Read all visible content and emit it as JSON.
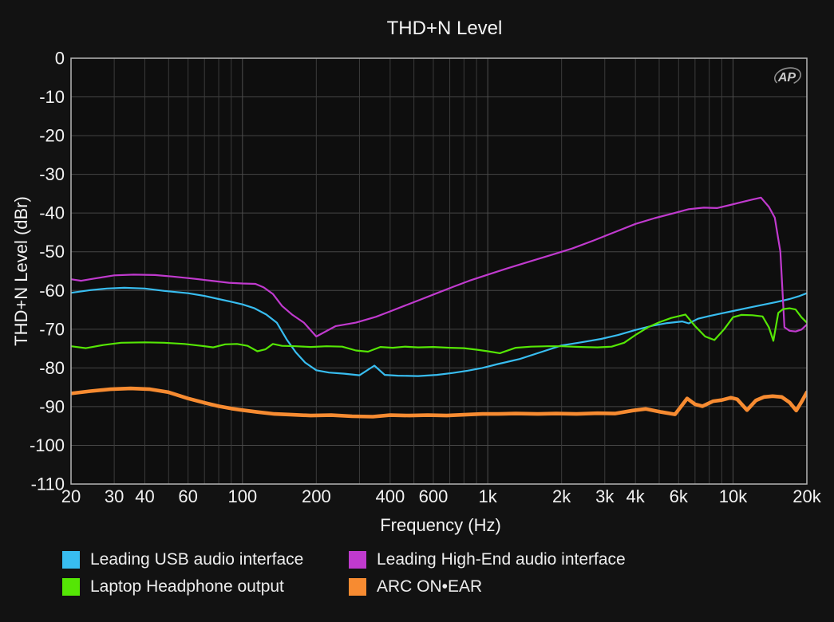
{
  "colors": {
    "background": "#121212",
    "plot_background": "#0e0e0e",
    "frame": "#b5b5b5",
    "grid_minor": "#3b3b3b",
    "grid_major": "#4e4e4e",
    "grid_horizontal": "#464646",
    "text": "#f2f2f2",
    "watermark": "#9a9a9a"
  },
  "watermark": {
    "label": "AP"
  },
  "chart_data": {
    "type": "line",
    "title": "THD+N Level",
    "xlabel": "Frequency (Hz)",
    "ylabel": "THD+N Level (dBr)",
    "x_scale": "log",
    "x_range": [
      20,
      20000
    ],
    "y_range": [
      -110,
      0
    ],
    "grid": true,
    "legend_position": "bottom",
    "y_ticks": [
      0,
      -10,
      -20,
      -30,
      -40,
      -50,
      -60,
      -70,
      -80,
      -90,
      -100,
      -110
    ],
    "x_ticks": [
      {
        "v": 20,
        "label": "20"
      },
      {
        "v": 30,
        "label": "30"
      },
      {
        "v": 40,
        "label": "40"
      },
      {
        "v": 60,
        "label": "60"
      },
      {
        "v": 100,
        "label": "100"
      },
      {
        "v": 200,
        "label": "200"
      },
      {
        "v": 400,
        "label": "400"
      },
      {
        "v": 600,
        "label": "600"
      },
      {
        "v": 1000,
        "label": "1k"
      },
      {
        "v": 2000,
        "label": "2k"
      },
      {
        "v": 3000,
        "label": "3k"
      },
      {
        "v": 4000,
        "label": "4k"
      },
      {
        "v": 6000,
        "label": "6k"
      },
      {
        "v": 10000,
        "label": "10k"
      },
      {
        "v": 20000,
        "label": "20k"
      }
    ],
    "x_gridlines": [
      30,
      40,
      50,
      60,
      70,
      80,
      90,
      100,
      200,
      300,
      400,
      500,
      600,
      700,
      800,
      900,
      1000,
      2000,
      3000,
      4000,
      5000,
      6000,
      7000,
      8000,
      9000,
      10000
    ],
    "x_gridlines_major": [
      100,
      1000,
      10000
    ],
    "series": [
      {
        "name": "Leading USB audio interface",
        "color": "#38bdf0",
        "stroke_width": 2.2,
        "points": [
          [
            20,
            -60.6
          ],
          [
            24,
            -59.9
          ],
          [
            28,
            -59.5
          ],
          [
            33,
            -59.3
          ],
          [
            40,
            -59.5
          ],
          [
            48,
            -60.1
          ],
          [
            60,
            -60.7
          ],
          [
            70,
            -61.4
          ],
          [
            80,
            -62.2
          ],
          [
            90,
            -62.9
          ],
          [
            100,
            -63.6
          ],
          [
            112,
            -64.6
          ],
          [
            125,
            -66.2
          ],
          [
            138,
            -68.3
          ],
          [
            152,
            -72.8
          ],
          [
            165,
            -76.0
          ],
          [
            180,
            -78.6
          ],
          [
            200,
            -80.6
          ],
          [
            225,
            -81.2
          ],
          [
            260,
            -81.5
          ],
          [
            300,
            -81.9
          ],
          [
            345,
            -79.4
          ],
          [
            380,
            -81.8
          ],
          [
            430,
            -82.0
          ],
          [
            520,
            -82.1
          ],
          [
            620,
            -81.8
          ],
          [
            720,
            -81.3
          ],
          [
            830,
            -80.7
          ],
          [
            950,
            -80.0
          ],
          [
            1100,
            -79.0
          ],
          [
            1350,
            -77.7
          ],
          [
            1650,
            -75.9
          ],
          [
            2000,
            -74.2
          ],
          [
            2400,
            -73.4
          ],
          [
            2900,
            -72.5
          ],
          [
            3400,
            -71.5
          ],
          [
            4000,
            -70.2
          ],
          [
            4700,
            -69.1
          ],
          [
            5400,
            -68.4
          ],
          [
            6200,
            -68.0
          ],
          [
            6600,
            -68.5
          ],
          [
            7200,
            -67.3
          ],
          [
            8000,
            -66.6
          ],
          [
            9000,
            -65.9
          ],
          [
            10000,
            -65.3
          ],
          [
            11500,
            -64.5
          ],
          [
            13000,
            -63.8
          ],
          [
            15000,
            -63.0
          ],
          [
            17000,
            -62.2
          ],
          [
            18500,
            -61.5
          ],
          [
            20000,
            -60.7
          ]
        ]
      },
      {
        "name": "Leading High-End audio interface",
        "color": "#c03ace",
        "stroke_width": 2.2,
        "points": [
          [
            20,
            -57.1
          ],
          [
            22,
            -57.5
          ],
          [
            25,
            -56.9
          ],
          [
            30,
            -56.1
          ],
          [
            36,
            -55.9
          ],
          [
            44,
            -56.0
          ],
          [
            52,
            -56.4
          ],
          [
            62,
            -56.9
          ],
          [
            75,
            -57.5
          ],
          [
            88,
            -58.0
          ],
          [
            100,
            -58.2
          ],
          [
            113,
            -58.3
          ],
          [
            122,
            -59.2
          ],
          [
            133,
            -60.9
          ],
          [
            145,
            -64.0
          ],
          [
            160,
            -66.3
          ],
          [
            178,
            -68.3
          ],
          [
            200,
            -71.9
          ],
          [
            240,
            -69.2
          ],
          [
            290,
            -68.3
          ],
          [
            350,
            -66.8
          ],
          [
            400,
            -65.4
          ],
          [
            460,
            -63.9
          ],
          [
            530,
            -62.4
          ],
          [
            620,
            -60.7
          ],
          [
            720,
            -59.1
          ],
          [
            840,
            -57.5
          ],
          [
            1000,
            -55.9
          ],
          [
            1200,
            -54.3
          ],
          [
            1500,
            -52.4
          ],
          [
            1800,
            -50.9
          ],
          [
            2200,
            -49.2
          ],
          [
            2700,
            -47.1
          ],
          [
            3300,
            -44.9
          ],
          [
            4000,
            -42.8
          ],
          [
            4800,
            -41.3
          ],
          [
            5600,
            -40.2
          ],
          [
            6600,
            -39.0
          ],
          [
            7600,
            -38.6
          ],
          [
            8600,
            -38.7
          ],
          [
            9600,
            -38.0
          ],
          [
            10800,
            -37.2
          ],
          [
            12000,
            -36.5
          ],
          [
            13000,
            -36.0
          ],
          [
            14000,
            -38.4
          ],
          [
            14800,
            -41.2
          ],
          [
            15600,
            -50.0
          ],
          [
            16200,
            -69.5
          ],
          [
            17000,
            -70.4
          ],
          [
            18000,
            -70.6
          ],
          [
            19000,
            -70.1
          ],
          [
            20000,
            -68.8
          ]
        ]
      },
      {
        "name": "Laptop Headphone output",
        "color": "#55e605",
        "stroke_width": 2.2,
        "points": [
          [
            20,
            -74.4
          ],
          [
            23,
            -74.9
          ],
          [
            27,
            -74.1
          ],
          [
            32,
            -73.5
          ],
          [
            40,
            -73.4
          ],
          [
            48,
            -73.5
          ],
          [
            58,
            -73.8
          ],
          [
            68,
            -74.3
          ],
          [
            76,
            -74.7
          ],
          [
            85,
            -73.9
          ],
          [
            95,
            -73.8
          ],
          [
            105,
            -74.3
          ],
          [
            115,
            -75.7
          ],
          [
            124,
            -75.2
          ],
          [
            133,
            -73.8
          ],
          [
            145,
            -74.3
          ],
          [
            165,
            -74.4
          ],
          [
            190,
            -74.6
          ],
          [
            220,
            -74.4
          ],
          [
            255,
            -74.5
          ],
          [
            290,
            -75.5
          ],
          [
            325,
            -75.8
          ],
          [
            365,
            -74.6
          ],
          [
            410,
            -74.8
          ],
          [
            460,
            -74.5
          ],
          [
            520,
            -74.7
          ],
          [
            600,
            -74.6
          ],
          [
            700,
            -74.8
          ],
          [
            800,
            -74.9
          ],
          [
            900,
            -75.3
          ],
          [
            1000,
            -75.7
          ],
          [
            1120,
            -76.2
          ],
          [
            1300,
            -74.8
          ],
          [
            1500,
            -74.5
          ],
          [
            1750,
            -74.4
          ],
          [
            2000,
            -74.4
          ],
          [
            2400,
            -74.6
          ],
          [
            2800,
            -74.7
          ],
          [
            3200,
            -74.5
          ],
          [
            3600,
            -73.5
          ],
          [
            4000,
            -71.5
          ],
          [
            4500,
            -69.5
          ],
          [
            5000,
            -68.2
          ],
          [
            5600,
            -67.1
          ],
          [
            6400,
            -66.2
          ],
          [
            7000,
            -69.2
          ],
          [
            7700,
            -71.9
          ],
          [
            8400,
            -72.8
          ],
          [
            9200,
            -70.0
          ],
          [
            10000,
            -66.9
          ],
          [
            10800,
            -66.3
          ],
          [
            12000,
            -66.4
          ],
          [
            13200,
            -66.7
          ],
          [
            14000,
            -69.5
          ],
          [
            14600,
            -73.0
          ],
          [
            15300,
            -65.8
          ],
          [
            16000,
            -64.8
          ],
          [
            17000,
            -64.6
          ],
          [
            18000,
            -64.9
          ],
          [
            19000,
            -66.9
          ],
          [
            20000,
            -68.3
          ]
        ]
      },
      {
        "name": "ARC ON•EAR",
        "color": "#f78b31",
        "stroke_width": 4.6,
        "points": [
          [
            20,
            -86.6
          ],
          [
            24,
            -86.0
          ],
          [
            29,
            -85.5
          ],
          [
            35,
            -85.3
          ],
          [
            42,
            -85.5
          ],
          [
            50,
            -86.3
          ],
          [
            60,
            -87.9
          ],
          [
            70,
            -89.0
          ],
          [
            80,
            -89.9
          ],
          [
            90,
            -90.5
          ],
          [
            100,
            -90.9
          ],
          [
            115,
            -91.4
          ],
          [
            135,
            -91.9
          ],
          [
            160,
            -92.1
          ],
          [
            190,
            -92.3
          ],
          [
            230,
            -92.2
          ],
          [
            280,
            -92.5
          ],
          [
            340,
            -92.6
          ],
          [
            400,
            -92.2
          ],
          [
            480,
            -92.3
          ],
          [
            570,
            -92.2
          ],
          [
            680,
            -92.3
          ],
          [
            800,
            -92.1
          ],
          [
            950,
            -91.9
          ],
          [
            1100,
            -91.9
          ],
          [
            1300,
            -91.8
          ],
          [
            1600,
            -91.9
          ],
          [
            1900,
            -91.8
          ],
          [
            2300,
            -91.9
          ],
          [
            2800,
            -91.7
          ],
          [
            3300,
            -91.8
          ],
          [
            3900,
            -91.0
          ],
          [
            4400,
            -90.6
          ],
          [
            5100,
            -91.4
          ],
          [
            5800,
            -92.0
          ],
          [
            6500,
            -87.9
          ],
          [
            7000,
            -89.4
          ],
          [
            7500,
            -89.9
          ],
          [
            8300,
            -88.6
          ],
          [
            9000,
            -88.3
          ],
          [
            9800,
            -87.7
          ],
          [
            10400,
            -88.1
          ],
          [
            11400,
            -90.9
          ],
          [
            12400,
            -88.4
          ],
          [
            13400,
            -87.5
          ],
          [
            14500,
            -87.3
          ],
          [
            15800,
            -87.5
          ],
          [
            17000,
            -88.9
          ],
          [
            18100,
            -91.0
          ],
          [
            19000,
            -88.8
          ],
          [
            20000,
            -86.3
          ]
        ]
      }
    ]
  }
}
